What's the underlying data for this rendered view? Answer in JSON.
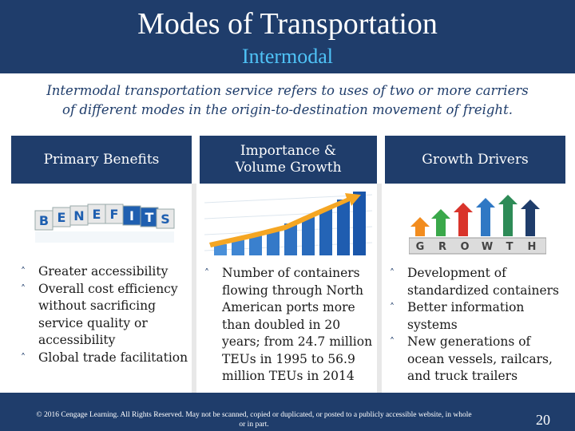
{
  "header": {
    "title": "Modes of Transportation",
    "subtitle": "Intermodal"
  },
  "intro": {
    "line1": "Intermodal transportation service refers to uses of two or more carriers",
    "line2": "of different modes in the origin-to-destination movement of freight."
  },
  "columns": [
    {
      "heading": "Primary Benefits",
      "image_icon": "benefits-letter-blocks",
      "image_letters": [
        "B",
        "E",
        "N",
        "E",
        "F",
        "I",
        "T",
        "S"
      ],
      "bullets": [
        "Greater accessibility",
        "Overall cost efficiency without sacrificing service quality or accessibility",
        "Global trade facilitation"
      ]
    },
    {
      "heading_line1": "Importance &",
      "heading_line2": "Volume Growth",
      "image_icon": "rising-bar-graph-with-arrow",
      "bullets": [
        "Number of containers flowing through North American ports more than doubled in 20 years; from 24.7 million TEUs in 1995 to 56.9 million TEUs in 2014"
      ]
    },
    {
      "heading": "Growth Drivers",
      "image_icon": "growth-arrows-blocks",
      "image_letters": [
        "G",
        "R",
        "O",
        "W",
        "T",
        "H"
      ],
      "bullets": [
        "Development of standardized containers",
        "Better information systems",
        "New generations of ocean vessels, railcars, and truck trailers"
      ]
    }
  ],
  "bullet_icon": "caret-up-icon",
  "footer": {
    "copyright_line1": "© 2016 Cengage Learning. All Rights Reserved. May not be scanned, copied or duplicated, or posted to a publicly accessible website, in whole",
    "copyright_line2": "or in part.",
    "page_number": "20"
  },
  "colors": {
    "header_bg": "#1f3d6b",
    "subtitle": "#4fc3f7",
    "intro_text": "#1f3d6b"
  }
}
